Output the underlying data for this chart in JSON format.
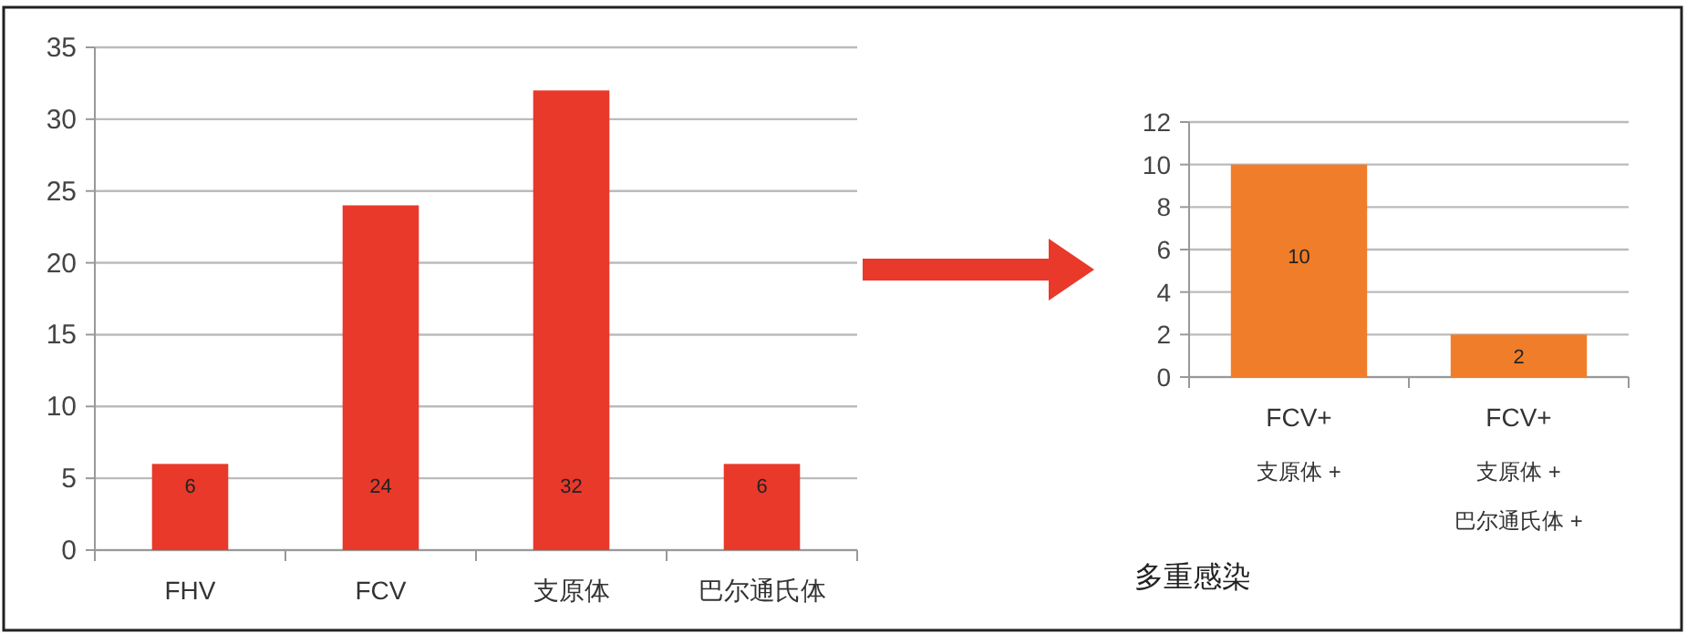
{
  "chart_data": [
    {
      "type": "bar",
      "categories": [
        "FHV",
        "FCV",
        "支原体",
        "巴尔通氏体"
      ],
      "values": [
        6,
        24,
        32,
        6
      ],
      "color": "#e8392a",
      "ylim": [
        0,
        35
      ],
      "yticks": [
        0,
        5,
        10,
        15,
        20,
        25,
        30,
        35
      ],
      "grid": "y",
      "data_labels": true
    },
    {
      "type": "bar",
      "categories": [
        "FCV+\n支原体 +",
        "FCV+\n支原体 +\n巴尔通氏体 +"
      ],
      "values": [
        10,
        2
      ],
      "color": "#f07d2a",
      "ylim": [
        0,
        12
      ],
      "yticks": [
        0,
        2,
        4,
        6,
        8,
        10,
        12
      ],
      "grid": "y",
      "data_labels": true,
      "annotations": [
        "多重感染"
      ]
    }
  ]
}
